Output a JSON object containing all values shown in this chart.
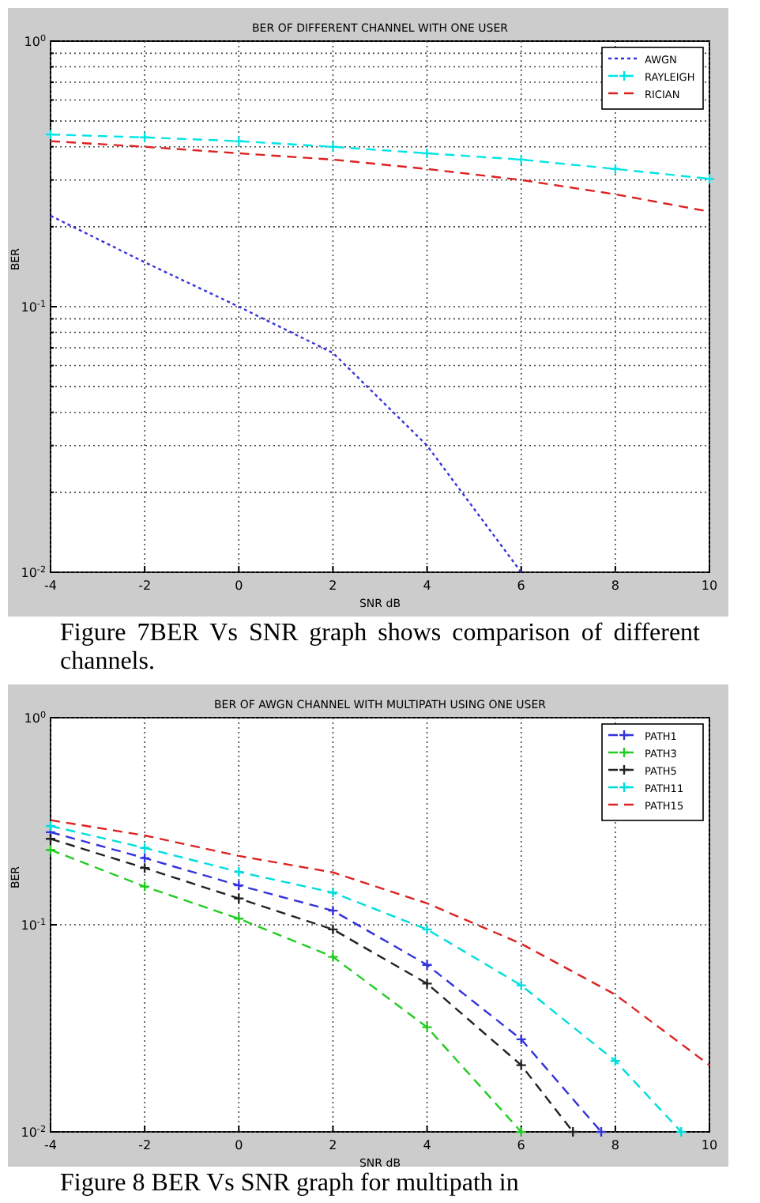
{
  "chart_data": [
    {
      "type": "line",
      "title": "BER OF DIFFERENT CHANNEL WITH ONE USER",
      "xlabel": "SNR dB",
      "ylabel": "BER",
      "x": [
        -4,
        -2,
        0,
        2,
        4,
        6,
        8,
        10
      ],
      "series": [
        {
          "name": "AWGN",
          "color": "#3333dd",
          "line_style": "dotted",
          "marker": "none",
          "values": [
            0.22,
            0.147,
            0.1,
            0.067,
            0.03,
            0.01,
            null,
            null
          ]
        },
        {
          "name": "RAYLEIGH",
          "color": "#00e5e5",
          "line_style": "dashed",
          "marker": "cross",
          "values": [
            0.445,
            0.434,
            0.42,
            0.4,
            0.378,
            0.358,
            0.33,
            0.303
          ]
        },
        {
          "name": "RICIAN",
          "color": "#dd2222",
          "line_style": "dashed",
          "marker": "none",
          "values": [
            0.42,
            0.4,
            0.378,
            0.358,
            0.33,
            0.3,
            0.265,
            0.228
          ]
        }
      ],
      "log": "y",
      "xlim": [
        -4,
        10
      ],
      "xticks": [
        -4,
        -2,
        0,
        2,
        4,
        6,
        8,
        10
      ],
      "ylim": [
        0.01,
        1
      ],
      "yticks": [
        {
          "value": 0.01,
          "label": "10$^{-2}$"
        },
        {
          "value": 0.02,
          "label": null
        },
        {
          "value": 0.03,
          "label": null
        },
        {
          "value": 0.04,
          "label": null
        },
        {
          "value": 0.05,
          "label": null
        },
        {
          "value": 0.06,
          "label": null
        },
        {
          "value": 0.07,
          "label": null
        },
        {
          "value": 0.08,
          "label": null
        },
        {
          "value": 0.09,
          "label": null
        },
        {
          "value": 0.1,
          "label": "10$^{-1}$"
        },
        {
          "value": 0.2,
          "label": null
        },
        {
          "value": 0.3,
          "label": null
        },
        {
          "value": 0.4,
          "label": null
        },
        {
          "value": 0.5,
          "label": null
        },
        {
          "value": 0.6,
          "label": null
        },
        {
          "value": 0.7,
          "label": null
        },
        {
          "value": 0.8,
          "label": null
        },
        {
          "value": 0.9,
          "label": null
        },
        {
          "value": 1,
          "label": "10$^{0}$"
        }
      ],
      "grid": true,
      "legend": "top right",
      "annotations": [
        "Figure 7BER Vs SNR graph shows comparison of different channels."
      ]
    },
    {
      "type": "line",
      "title": "BER OF AWGN CHANNEL WITH MULTIPATH USING ONE USER",
      "xlabel": "SNR dB",
      "ylabel": "BER",
      "series": [
        {
          "name": "PATH1",
          "color": "#3333dd",
          "line_style": "dashed",
          "marker": "cross",
          "x": [
            -4,
            -2,
            0,
            2,
            4,
            6,
            7.7
          ],
          "values": [
            0.28,
            0.21,
            0.155,
            0.117,
            0.064,
            0.028,
            0.01
          ]
        },
        {
          "name": "PATH3",
          "color": "#22cc22",
          "line_style": "dashed",
          "marker": "cross",
          "x": [
            -4,
            -2,
            0,
            2,
            4,
            6
          ],
          "values": [
            0.23,
            0.153,
            0.107,
            0.07,
            0.032,
            0.01
          ]
        },
        {
          "name": "PATH5",
          "color": "#222222",
          "line_style": "dashed",
          "marker": "cross",
          "x": [
            -4,
            -2,
            0,
            2,
            4,
            6,
            7.1
          ],
          "values": [
            0.26,
            0.188,
            0.134,
            0.095,
            0.052,
            0.021,
            0.01
          ]
        },
        {
          "name": "PATH11",
          "color": "#00dddd",
          "line_style": "dashed",
          "marker": "cross",
          "x": [
            -4,
            -2,
            0,
            2,
            4,
            6,
            8,
            9.4
          ],
          "values": [
            0.3,
            0.235,
            0.18,
            0.143,
            0.095,
            0.051,
            0.022,
            0.01
          ]
        },
        {
          "name": "PATH15",
          "color": "#dd2222",
          "line_style": "dashed",
          "marker": "none",
          "x": [
            -4,
            -2,
            0,
            2,
            4,
            6,
            8,
            10
          ],
          "values": [
            0.32,
            0.27,
            0.215,
            0.179,
            0.127,
            0.081,
            0.046,
            0.021
          ]
        }
      ],
      "log": "y",
      "xlim": [
        -4,
        10
      ],
      "xticks": [
        -4,
        -2,
        0,
        2,
        4,
        6,
        8,
        10
      ],
      "ylim": [
        0.01,
        1
      ],
      "yticks": [
        {
          "value": 0.01,
          "label": "10$^{-2}$"
        },
        {
          "value": 0.1,
          "label": "10$^{-1}$"
        },
        {
          "value": 1,
          "label": "10$^{0}$"
        }
      ],
      "grid": true,
      "legend": "top right",
      "annotations": [
        "Figure 8 BER Vs SNR graph for multipath in"
      ]
    }
  ]
}
